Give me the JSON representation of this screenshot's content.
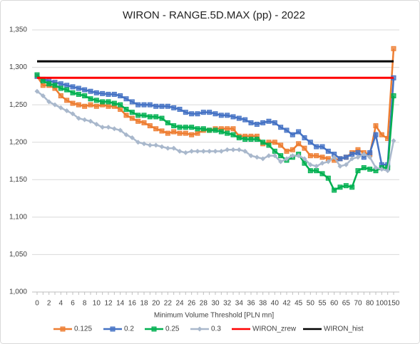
{
  "chart_data": {
    "type": "line",
    "title": "WIRON - RANGE.5D.MAX (pp) - 2022",
    "x_label": "Minimum Volume Threshold [PLN mn]",
    "categories": [
      "0",
      null,
      "2",
      null,
      "4",
      null,
      "6",
      null,
      "8",
      null,
      "10",
      null,
      "12",
      null,
      "14",
      null,
      "16",
      null,
      "18",
      null,
      "20",
      null,
      "22",
      null,
      "24",
      null,
      "26",
      null,
      "28",
      null,
      "30",
      null,
      "32",
      null,
      "34",
      null,
      "36",
      null,
      "38",
      null,
      "40",
      null,
      "42",
      null,
      "45",
      null,
      "50",
      null,
      "55",
      null,
      "60",
      null,
      "65",
      null,
      "70",
      null,
      "80",
      null,
      "100",
      null,
      "150"
    ],
    "ylim": [
      1000,
      1350
    ],
    "yticks": [
      {
        "value": 1000,
        "label": "1,000"
      },
      {
        "value": 1050,
        "label": "1,050"
      },
      {
        "value": 1100,
        "label": "1,100"
      },
      {
        "value": 1150,
        "label": "1,150"
      },
      {
        "value": 1200,
        "label": "1,200"
      },
      {
        "value": 1250,
        "label": "1,250"
      },
      {
        "value": 1300,
        "label": "1,300"
      },
      {
        "value": 1350,
        "label": "1,350"
      }
    ],
    "grid": true,
    "legend": "bottom",
    "series": [
      {
        "name": "0.125",
        "color": "#ed7d31",
        "marker": "square",
        "values": [
          1288,
          1276,
          1276,
          1272,
          1262,
          1256,
          1252,
          1250,
          1248,
          1250,
          1248,
          1250,
          1248,
          1248,
          1244,
          1236,
          1232,
          1228,
          1226,
          1222,
          1218,
          1215,
          1212,
          1214,
          1212,
          1212,
          1210,
          1212,
          1216,
          1216,
          1218,
          1218,
          1218,
          1218,
          1208,
          1208,
          1208,
          1208,
          1198,
          1200,
          1200,
          1196,
          1188,
          1190,
          1198,
          1192,
          1182,
          1182,
          1180,
          1178,
          1176,
          1178,
          1180,
          1186,
          1190,
          1186,
          1184,
          1222,
          1210,
          1205,
          1325
        ]
      },
      {
        "name": "0.2",
        "color": "#4472c4",
        "marker": "square",
        "values": [
          1288,
          1284,
          1282,
          1280,
          1278,
          1276,
          1274,
          1272,
          1270,
          1268,
          1266,
          1265,
          1264,
          1264,
          1262,
          1258,
          1254,
          1250,
          1250,
          1250,
          1248,
          1248,
          1248,
          1246,
          1244,
          1240,
          1238,
          1238,
          1240,
          1240,
          1238,
          1236,
          1236,
          1234,
          1232,
          1230,
          1226,
          1224,
          1226,
          1228,
          1226,
          1220,
          1216,
          1210,
          1214,
          1206,
          1200,
          1194,
          1194,
          1188,
          1184,
          1178,
          1180,
          1184,
          1186,
          1180,
          1186,
          1210,
          1170,
          1170,
          1286
        ]
      },
      {
        "name": "0.25",
        "color": "#00b050",
        "marker": "square",
        "values": [
          1290,
          1282,
          1278,
          1276,
          1272,
          1270,
          1266,
          1264,
          1262,
          1258,
          1256,
          1254,
          1254,
          1252,
          1250,
          1244,
          1240,
          1236,
          1236,
          1234,
          1234,
          1232,
          1226,
          1222,
          1220,
          1220,
          1220,
          1218,
          1218,
          1216,
          1216,
          1214,
          1212,
          1210,
          1206,
          1204,
          1204,
          1204,
          1200,
          1196,
          1188,
          1182,
          1176,
          1180,
          1184,
          1172,
          1162,
          1162,
          1158,
          1152,
          1136,
          1140,
          1142,
          1140,
          1162,
          1166,
          1164,
          1162,
          1166,
          1166,
          1262
        ]
      },
      {
        "name": "0.3",
        "color": "#a9b8cc",
        "marker": "diamond",
        "values": [
          1268,
          1262,
          1254,
          1250,
          1246,
          1242,
          1238,
          1232,
          1230,
          1228,
          1224,
          1220,
          1220,
          1218,
          1216,
          1210,
          1206,
          1200,
          1198,
          1196,
          1196,
          1194,
          1192,
          1192,
          1188,
          1186,
          1188,
          1188,
          1188,
          1188,
          1188,
          1188,
          1190,
          1190,
          1190,
          1188,
          1182,
          1180,
          1178,
          1182,
          1182,
          1174,
          1178,
          1182,
          1182,
          1178,
          1170,
          1168,
          1172,
          1174,
          1180,
          1168,
          1170,
          1178,
          1180,
          1184,
          1180,
          1166,
          1164,
          1162,
          1202
        ]
      },
      {
        "name": "WIRON_zrew",
        "color": "#ff0000",
        "marker": "none",
        "values": [
          1286,
          1286,
          1286,
          1286,
          1286,
          1286,
          1286,
          1286,
          1286,
          1286,
          1286,
          1286,
          1286,
          1286,
          1286,
          1286,
          1286,
          1286,
          1286,
          1286,
          1286,
          1286,
          1286,
          1286,
          1286,
          1286,
          1286,
          1286,
          1286,
          1286,
          1286,
          1286,
          1286,
          1286,
          1286,
          1286,
          1286,
          1286,
          1286,
          1286,
          1286,
          1286,
          1286,
          1286,
          1286,
          1286,
          1286,
          1286,
          1286,
          1286,
          1286,
          1286,
          1286,
          1286,
          1286,
          1286,
          1286,
          1286,
          1286,
          1286,
          1286
        ]
      },
      {
        "name": "WIRON_hist",
        "color": "#000000",
        "marker": "none",
        "values": [
          1308,
          1308,
          1308,
          1308,
          1308,
          1308,
          1308,
          1308,
          1308,
          1308,
          1308,
          1308,
          1308,
          1308,
          1308,
          1308,
          1308,
          1308,
          1308,
          1308,
          1308,
          1308,
          1308,
          1308,
          1308,
          1308,
          1308,
          1308,
          1308,
          1308,
          1308,
          1308,
          1308,
          1308,
          1308,
          1308,
          1308,
          1308,
          1308,
          1308,
          1308,
          1308,
          1308,
          1308,
          1308,
          1308,
          1308,
          1308,
          1308,
          1308,
          1308,
          1308,
          1308,
          1308,
          1308,
          1308,
          1308,
          1308,
          1308,
          1308,
          1308
        ]
      }
    ]
  }
}
